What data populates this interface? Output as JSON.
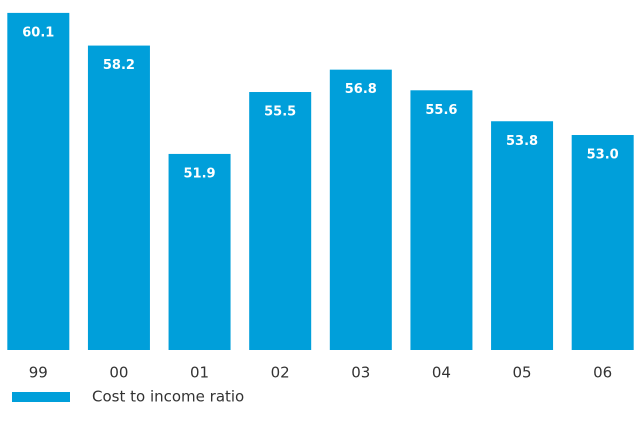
{
  "chart_data": {
    "type": "bar",
    "categories": [
      "99",
      "00",
      "01",
      "02",
      "03",
      "04",
      "05",
      "06"
    ],
    "series": [
      {
        "name": "Cost to income ratio",
        "color": "#009fda",
        "values": [
          60.1,
          58.2,
          51.9,
          55.5,
          56.8,
          55.6,
          53.8,
          53.0
        ],
        "value_labels": [
          "60.1",
          "58.2",
          "51.9",
          "55.5",
          "56.8",
          "55.6",
          "53.8",
          "53.0"
        ]
      }
    ],
    "ylim": [
      40.5,
      60.85
    ]
  }
}
